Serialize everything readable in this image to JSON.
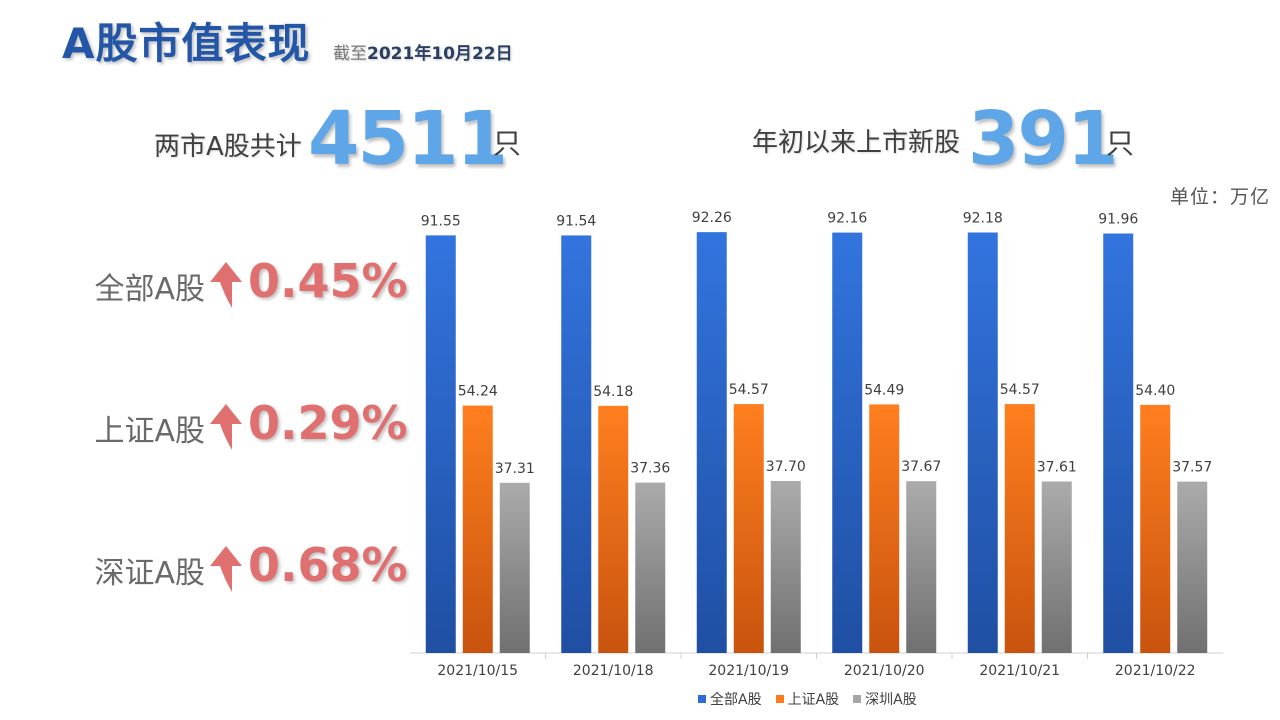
{
  "header": {
    "title": "A股市值表现",
    "asof_prefix": "截至",
    "asof_date": "2021年10月22日"
  },
  "stats": {
    "total_label": "两市A股共计",
    "total_value": "4511",
    "total_unit": "只",
    "new_label": "年初以来上市新股",
    "new_value": "391",
    "new_unit": "只"
  },
  "unit_note": "单位：万亿",
  "changes": [
    {
      "name": "全部A股",
      "value": "0.45%"
    },
    {
      "name": "上证A股",
      "value": "0.29%"
    },
    {
      "name": "深证A股",
      "value": "0.68%"
    }
  ],
  "colors": {
    "accent_blue": "#2e6bd6",
    "accent_orange": "#ff7a1a",
    "accent_gray": "#a6a6a6",
    "up_red": "#e07070",
    "title_blue": "#2456a8"
  },
  "chart_data": {
    "type": "bar",
    "categories": [
      "2021/10/15",
      "2021/10/18",
      "2021/10/19",
      "2021/10/20",
      "2021/10/21",
      "2021/10/22"
    ],
    "series": [
      {
        "name": "全部A股",
        "color": "#2e6bd6",
        "values": [
          91.55,
          91.54,
          92.26,
          92.16,
          92.18,
          91.96
        ]
      },
      {
        "name": "上证A股",
        "color": "#ff7a1a",
        "values": [
          54.24,
          54.18,
          54.57,
          54.49,
          54.57,
          54.4
        ]
      },
      {
        "name": "深圳A股",
        "color": "#a6a6a6",
        "values": [
          37.31,
          37.36,
          37.7,
          37.67,
          37.61,
          37.57
        ]
      }
    ],
    "ylim": [
      0,
      100
    ],
    "grid": false,
    "legend_position": "bottom",
    "data_labels": true
  }
}
